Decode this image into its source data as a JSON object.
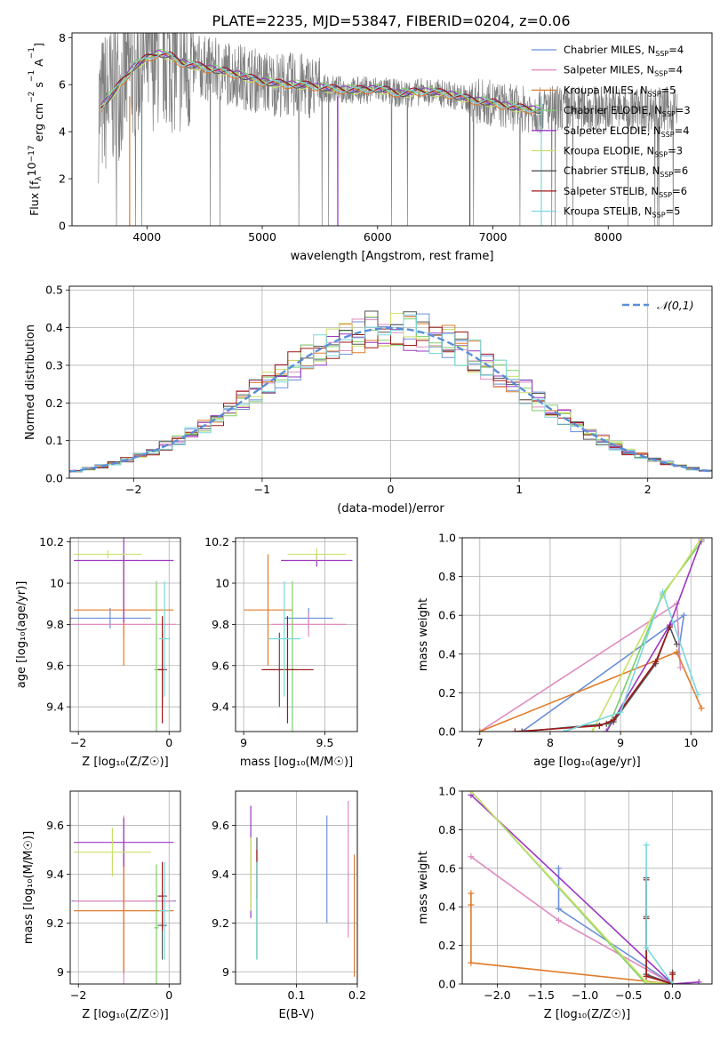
{
  "title": "PLATE=2235, MJD=53847, FIBERID=0204, z=0.06",
  "models": [
    {
      "name": "Chabrier MILES",
      "nssp": "4",
      "color": "#6a8fd8"
    },
    {
      "name": "Salpeter MILES",
      "nssp": "4",
      "color": "#e08cc0"
    },
    {
      "name": "Kroupa MILES",
      "nssp": "5",
      "color": "#e07b2a"
    },
    {
      "name": "Chabrier ELODIE",
      "nssp": "3",
      "color": "#7ccf6a"
    },
    {
      "name": "Salpeter ELODIE",
      "nssp": "4",
      "color": "#9b38c2"
    },
    {
      "name": "Kroupa ELODIE",
      "nssp": "3",
      "color": "#c9e06a"
    },
    {
      "name": "Chabrier STELIB",
      "nssp": "6",
      "color": "#555555"
    },
    {
      "name": "Salpeter STELIB",
      "nssp": "6",
      "color": "#a01818"
    },
    {
      "name": "Kroupa STELIB",
      "nssp": "5",
      "color": "#7ad8dc"
    }
  ],
  "chart_data": [
    {
      "type": "line",
      "xlabel": "wavelength [Angstrom, rest frame]",
      "ylabel_parts": [
        "Flux [f",
        "λ",
        "10",
        "−17",
        " erg cm",
        "−2",
        " s",
        "−1",
        " A",
        "−1",
        "]"
      ],
      "xlim": [
        3350,
        8900
      ],
      "ylim": [
        0,
        8.2
      ],
      "xticks": [
        4000,
        5000,
        6000,
        7000,
        8000
      ],
      "yticks": [
        0,
        2,
        4,
        6,
        8
      ],
      "legend_subscript": "SSP",
      "data_color": "#808080",
      "model_x": [
        3600,
        3700,
        3800,
        3900,
        4000,
        4100,
        4200,
        4300,
        4400,
        4500,
        4600,
        4800,
        5000,
        5200,
        5400,
        5600,
        5800,
        6000,
        6200,
        6400,
        6600,
        6800,
        7000,
        7200,
        7400
      ],
      "model_y": [
        5.0,
        5.6,
        6.2,
        6.8,
        7.1,
        7.3,
        7.2,
        6.9,
        6.8,
        6.7,
        6.6,
        6.4,
        6.1,
        6.0,
        5.95,
        5.8,
        5.75,
        5.8,
        5.6,
        5.7,
        5.6,
        5.35,
        5.2,
        5.0,
        4.9
      ],
      "model_offsets": [
        0.05,
        0.0,
        -0.05,
        0.1,
        0.05,
        -0.05,
        0.0,
        0.08,
        0.02
      ],
      "dip_x": [
        3850,
        5655,
        6800,
        7420
      ],
      "dip_y": [
        0,
        0,
        0,
        0
      ]
    },
    {
      "type": "histogram",
      "xlabel": "(data-model)/error",
      "ylabel": "Normed distribution",
      "xlim": [
        -2.5,
        2.5
      ],
      "ylim": [
        0,
        0.51
      ],
      "xticks": [
        -2,
        -1,
        0,
        1,
        2
      ],
      "yticks": [
        0.0,
        0.1,
        0.2,
        0.3,
        0.4,
        0.5
      ],
      "bin_width": 0.1,
      "legend": "𝒩(0,1)",
      "normal_color": "#5b8ed8"
    },
    {
      "type": "scatter",
      "xlabel": "Z [log₁₀(Z/Z☉)]",
      "ylabel": "age  [log₁₀(age/yr)]",
      "xlim": [
        -2.18,
        0.25
      ],
      "ylim": [
        9.28,
        10.22
      ],
      "xticks": [
        -2,
        0
      ],
      "yticks": [
        9.4,
        9.6,
        9.8,
        10.0,
        10.2
      ],
      "points": [
        {
          "x": -1.3,
          "y": 9.83,
          "xerr": [
            0.9,
            0.9
          ],
          "yerr": [
            0.05,
            0.05
          ]
        },
        {
          "x": -1.0,
          "y": 9.8,
          "xerr": [
            1.15,
            1.15
          ],
          "yerr": [
            0.06,
            0.06
          ]
        },
        {
          "x": -1.0,
          "y": 9.87,
          "xerr": [
            1.1,
            1.1
          ],
          "yerr": [
            0.27,
            0.27
          ]
        },
        {
          "x": -0.28,
          "y": 9.58,
          "xerr": [
            0.05,
            0.05
          ],
          "yerr": [
            0.43,
            0.43
          ]
        },
        {
          "x": -1.0,
          "y": 10.11,
          "xerr": [
            1.1,
            1.1
          ],
          "yerr": [
            0.3,
            0.3
          ]
        },
        {
          "x": -1.35,
          "y": 10.14,
          "xerr": [
            0.75,
            0.75
          ],
          "yerr": [
            0.02,
            0.02
          ]
        },
        {
          "x": -0.15,
          "y": 9.58,
          "xerr": [
            0.1,
            0.1
          ],
          "yerr": [
            0.18,
            0.18
          ]
        },
        {
          "x": -0.15,
          "y": 9.58,
          "xerr": [
            0.1,
            0.1
          ],
          "yerr": [
            0.26,
            0.26
          ]
        },
        {
          "x": -0.1,
          "y": 9.73,
          "xerr": [
            0.12,
            0.12
          ],
          "yerr": [
            0.28,
            0.28
          ]
        }
      ]
    },
    {
      "type": "scatter",
      "xlabel": "mass [log₁₀(M/M☉)]",
      "ylabel": "",
      "xlim": [
        8.95,
        9.7
      ],
      "ylim": [
        9.28,
        10.22
      ],
      "xticks": [
        9.0,
        9.5
      ],
      "yticks": [
        9.4,
        9.6,
        9.8,
        10.0,
        10.2
      ],
      "points": [
        {
          "x": 9.4,
          "y": 9.83,
          "xerr": [
            0.15,
            0.15
          ],
          "yerr": [
            0.05,
            0.05
          ]
        },
        {
          "x": 9.4,
          "y": 9.8,
          "xerr": [
            0.23,
            0.23
          ],
          "yerr": [
            0.06,
            0.06
          ]
        },
        {
          "x": 9.15,
          "y": 9.87,
          "xerr": [
            0.15,
            0.15
          ],
          "yerr": [
            0.27,
            0.27
          ]
        },
        {
          "x": 9.3,
          "y": 9.58,
          "xerr": [
            0.07,
            0.07
          ],
          "yerr": [
            0.43,
            0.43
          ]
        },
        {
          "x": 9.45,
          "y": 10.11,
          "xerr": [
            0.22,
            0.22
          ],
          "yerr": [
            0.03,
            0.03
          ]
        },
        {
          "x": 9.45,
          "y": 10.14,
          "xerr": [
            0.18,
            0.18
          ],
          "yerr": [
            0.03,
            0.03
          ]
        },
        {
          "x": 9.22,
          "y": 9.58,
          "xerr": [
            0.1,
            0.1
          ],
          "yerr": [
            0.18,
            0.18
          ]
        },
        {
          "x": 9.27,
          "y": 9.58,
          "xerr": [
            0.16,
            0.16
          ],
          "yerr": [
            0.26,
            0.26
          ]
        },
        {
          "x": 9.25,
          "y": 9.73,
          "xerr": [
            0.1,
            0.1
          ],
          "yerr": [
            0.28,
            0.28
          ]
        }
      ]
    },
    {
      "type": "line",
      "xlabel": "age  [log₁₀(age/yr)]",
      "ylabel": "mass weight",
      "xlim": [
        6.75,
        10.3
      ],
      "ylim": [
        0,
        1.0
      ],
      "xticks": [
        7,
        8,
        9,
        10
      ],
      "yticks": [
        0.0,
        0.2,
        0.4,
        0.6,
        0.8,
        1.0
      ],
      "series": [
        {
          "x": [
            7.6,
            9.9,
            9.82
          ],
          "y": [
            0.0,
            0.6,
            0.4
          ]
        },
        {
          "x": [
            7.0,
            9.8,
            9.85
          ],
          "y": [
            0.0,
            0.66,
            0.33
          ]
        },
        {
          "x": [
            7.0,
            9.8,
            10.15
          ],
          "y": [
            0.0,
            0.41,
            0.12
          ]
        },
        {
          "x": [
            8.8,
            9.6,
            10.15
          ],
          "y": [
            0.0,
            0.71,
            0.98
          ]
        },
        {
          "x": [
            8.8,
            9.7,
            10.15
          ],
          "y": [
            0.0,
            0.55,
            0.99
          ]
        },
        {
          "x": [
            8.6,
            9.6,
            10.15
          ],
          "y": [
            0.0,
            0.7,
            1.0
          ]
        },
        {
          "x": [
            7.6,
            8.8,
            8.9,
            9.5,
            9.7,
            9.8
          ],
          "y": [
            0.0,
            0.04,
            0.05,
            0.35,
            0.54,
            0.45
          ]
        },
        {
          "x": [
            7.5,
            8.7,
            8.9,
            9.5,
            9.7
          ],
          "y": [
            0.0,
            0.03,
            0.06,
            0.36,
            0.54
          ]
        },
        {
          "x": [
            8.2,
            9.0,
            9.6,
            10.1
          ],
          "y": [
            0.0,
            0.1,
            0.72,
            0.19
          ]
        }
      ]
    },
    {
      "type": "scatter",
      "xlabel": "Z [log₁₀(Z/Z☉)]",
      "ylabel": "mass [log₁₀(M/M☉)]",
      "xlim": [
        -2.18,
        0.25
      ],
      "ylim": [
        8.95,
        9.74
      ],
      "xticks": [
        -2,
        0
      ],
      "yticks": [
        9.0,
        9.2,
        9.4,
        9.6
      ],
      "points": [
        {
          "x": -1.0,
          "y": 9.29,
          "xerr": [
            1.15,
            1.15
          ],
          "yerr": [
            0.3,
            0.3
          ]
        },
        {
          "x": -1.0,
          "y": 9.29,
          "xerr": [
            1.1,
            1.1
          ],
          "yerr": [
            0.35,
            0.35
          ]
        },
        {
          "x": -1.0,
          "y": 9.25,
          "xerr": [
            1.1,
            1.1
          ],
          "yerr": [
            0.25,
            0.25
          ]
        },
        {
          "x": -0.28,
          "y": 9.18,
          "xerr": [
            0.05,
            0.05
          ],
          "yerr": [
            0.26,
            0.26
          ]
        },
        {
          "x": -1.0,
          "y": 9.53,
          "xerr": [
            1.1,
            1.1
          ],
          "yerr": [
            0.1,
            0.1
          ]
        },
        {
          "x": -1.25,
          "y": 9.49,
          "xerr": [
            0.85,
            0.85
          ],
          "yerr": [
            0.1,
            0.1
          ]
        },
        {
          "x": -0.15,
          "y": 9.19,
          "xerr": [
            0.1,
            0.1
          ],
          "yerr": [
            0.14,
            0.14
          ]
        },
        {
          "x": -0.15,
          "y": 9.31,
          "xerr": [
            0.1,
            0.1
          ],
          "yerr": [
            0.14,
            0.14
          ]
        },
        {
          "x": -0.1,
          "y": 9.25,
          "xerr": [
            0.12,
            0.12
          ],
          "yerr": [
            0.2,
            0.2
          ]
        }
      ]
    },
    {
      "type": "scatter",
      "xlabel": "E(B-V)",
      "ylabel": "",
      "xlim": [
        0.0,
        0.2
      ],
      "ylim": [
        8.95,
        9.74
      ],
      "xticks": [
        0.1,
        0.2
      ],
      "yticks": [
        9.0,
        9.2,
        9.4,
        9.6
      ],
      "points": [
        {
          "x": 0.15,
          "y": 9.42,
          "xerr": [
            0.0,
            0.0
          ],
          "yerr": [
            0.22,
            0.22
          ]
        },
        {
          "x": 0.185,
          "y": 9.42,
          "xerr": [
            0.0,
            0.0
          ],
          "yerr": [
            0.28,
            0.28
          ]
        },
        {
          "x": 0.195,
          "y": 9.23,
          "xerr": [
            0.0,
            0.0
          ],
          "yerr": [
            0.25,
            0.25
          ]
        },
        {
          "x": 0.035,
          "y": 9.25,
          "xerr": [
            0.0,
            0.0
          ],
          "yerr": [
            0.2,
            0.2
          ]
        },
        {
          "x": 0.025,
          "y": 9.45,
          "xerr": [
            0.0,
            0.0
          ],
          "yerr": [
            0.23,
            0.23
          ]
        },
        {
          "x": 0.025,
          "y": 9.4,
          "xerr": [
            0.0,
            0.0
          ],
          "yerr": [
            0.15,
            0.15
          ]
        },
        {
          "x": 0.035,
          "y": 9.3,
          "xerr": [
            0.0,
            0.0
          ],
          "yerr": [
            0.25,
            0.25
          ]
        },
        {
          "x": 0.035,
          "y": 9.4,
          "xerr": [
            0.0,
            0.0
          ],
          "yerr": [
            0.1,
            0.1
          ]
        },
        {
          "x": 0.035,
          "y": 9.25,
          "xerr": [
            0.0,
            0.0
          ],
          "yerr": [
            0.2,
            0.2
          ]
        }
      ]
    },
    {
      "type": "line",
      "xlabel": "Z [log₁₀(Z/Z☉)]",
      "ylabel": "mass weight",
      "xlim": [
        -2.4,
        0.45
      ],
      "ylim": [
        0,
        1.0
      ],
      "xticks": [
        -2.0,
        -1.5,
        -1.0,
        -0.5,
        0.0
      ],
      "xticklabels": [
        "−2.0",
        "−1.5",
        "−1.0",
        "−0.5",
        "0.0"
      ],
      "yticks": [
        0.0,
        0.2,
        0.4,
        0.6,
        0.8,
        1.0
      ],
      "series": [
        {
          "x": [
            -1.3,
            -1.3,
            0.0
          ],
          "y": [
            0.6,
            0.39,
            0.0
          ]
        },
        {
          "x": [
            -2.3,
            -1.3,
            0.0
          ],
          "y": [
            0.66,
            0.33,
            0.0
          ]
        },
        {
          "x": [
            -2.3,
            -2.3,
            -2.3,
            0.0
          ],
          "y": [
            0.47,
            0.41,
            0.11,
            0.0
          ]
        },
        {
          "x": [
            -2.3,
            -0.3,
            0.0
          ],
          "y": [
            1.0,
            0.0,
            0.0
          ]
        },
        {
          "x": [
            -2.3,
            0.0,
            0.3
          ],
          "y": [
            0.98,
            0.0,
            0.01
          ]
        },
        {
          "x": [
            -2.3,
            -0.3,
            0.0
          ],
          "y": [
            1.0,
            0.01,
            0.0
          ]
        },
        {
          "x": [
            -0.3,
            -0.3,
            -0.3,
            0.0,
            0.0
          ],
          "y": [
            0.55,
            0.35,
            0.05,
            0.0,
            0.06
          ]
        },
        {
          "x": [
            -0.3,
            -0.3,
            -0.3,
            0.0,
            0.0
          ],
          "y": [
            0.54,
            0.34,
            0.04,
            0.0,
            0.05
          ]
        },
        {
          "x": [
            -0.3,
            -0.3,
            0.0
          ],
          "y": [
            0.72,
            0.19,
            0.0
          ]
        }
      ]
    }
  ]
}
